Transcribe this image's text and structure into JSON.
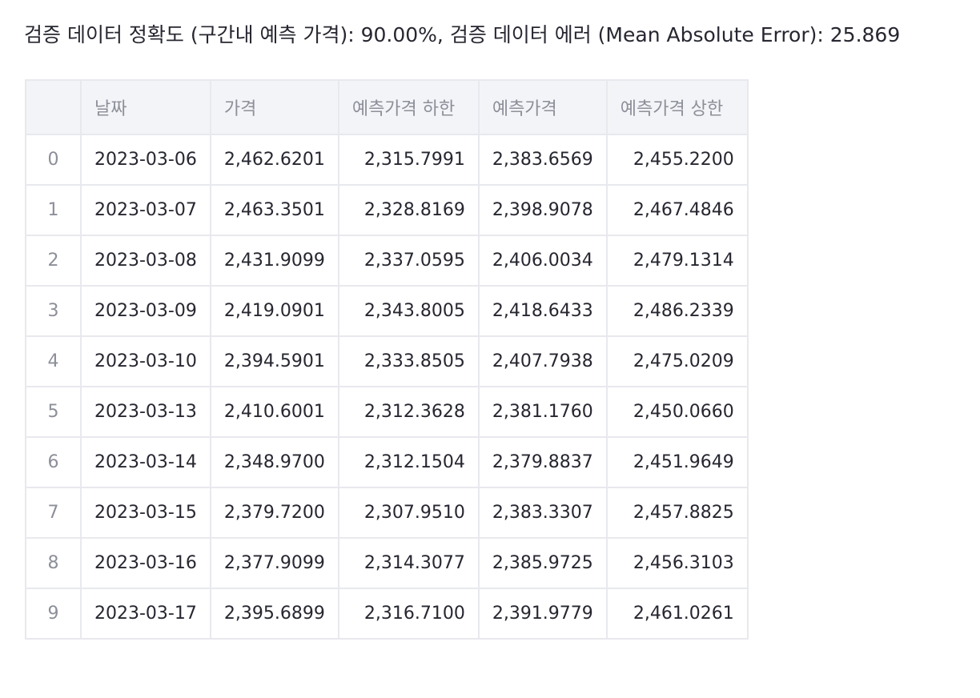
{
  "summary_text": "검증 데이터 정확도 (구간내 예측 가격): 90.00%, 검증 데이터 에러 (Mean Absolute Error): 25.869",
  "table": {
    "columns": [
      "",
      "날짜",
      "가격",
      "예측가격 하한",
      "예측가격",
      "예측가격 상한"
    ],
    "rows": [
      [
        "0",
        "2023-03-06",
        "2,462.6201",
        "2,315.7991",
        "2,383.6569",
        "2,455.2200"
      ],
      [
        "1",
        "2023-03-07",
        "2,463.3501",
        "2,328.8169",
        "2,398.9078",
        "2,467.4846"
      ],
      [
        "2",
        "2023-03-08",
        "2,431.9099",
        "2,337.0595",
        "2,406.0034",
        "2,479.1314"
      ],
      [
        "3",
        "2023-03-09",
        "2,419.0901",
        "2,343.8005",
        "2,418.6433",
        "2,486.2339"
      ],
      [
        "4",
        "2023-03-10",
        "2,394.5901",
        "2,333.8505",
        "2,407.7938",
        "2,475.0209"
      ],
      [
        "5",
        "2023-03-13",
        "2,410.6001",
        "2,312.3628",
        "2,381.1760",
        "2,450.0660"
      ],
      [
        "6",
        "2023-03-14",
        "2,348.9700",
        "2,312.1504",
        "2,379.8837",
        "2,451.9649"
      ],
      [
        "7",
        "2023-03-15",
        "2,379.7200",
        "2,307.9510",
        "2,383.3307",
        "2,457.8825"
      ],
      [
        "8",
        "2023-03-16",
        "2,377.9099",
        "2,314.3077",
        "2,385.9725",
        "2,456.3103"
      ],
      [
        "9",
        "2023-03-17",
        "2,395.6899",
        "2,316.7100",
        "2,391.9779",
        "2,461.0261"
      ]
    ]
  }
}
